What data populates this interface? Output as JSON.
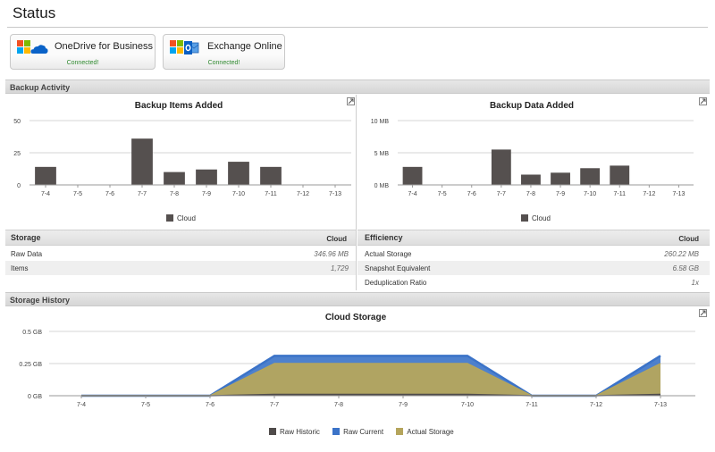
{
  "page": {
    "title": "Status"
  },
  "services": [
    {
      "name": "OneDrive for Business",
      "status": "Connected!",
      "icon": "onedrive-icon"
    },
    {
      "name": "Exchange Online",
      "status": "Connected!",
      "icon": "outlook-icon"
    }
  ],
  "backup_activity": {
    "section_title": "Backup Activity",
    "storage_table": {
      "headers": [
        "Storage",
        "Cloud"
      ],
      "rows": [
        {
          "label": "Raw Data",
          "value": "346.96 MB"
        },
        {
          "label": "Items",
          "value": "1,729"
        }
      ]
    },
    "efficiency_table": {
      "headers": [
        "Efficiency",
        "Cloud"
      ],
      "rows": [
        {
          "label": "Actual Storage",
          "value": "260.22 MB"
        },
        {
          "label": "Snapshot Equivalent",
          "value": "6.58 GB"
        },
        {
          "label": "Deduplication Ratio",
          "value": "1x"
        }
      ]
    }
  },
  "storage_history": {
    "section_title": "Storage History"
  },
  "colors": {
    "cloud_bar": "#55504f",
    "raw_historic": "#4f4b4a",
    "raw_current": "#3b73c8",
    "actual_storage": "#b5a55c",
    "connected_text": "#2f8a2f"
  },
  "chart_data": [
    {
      "type": "bar",
      "title": "Backup Items Added",
      "categories": [
        "7-4",
        "7-5",
        "7-6",
        "7-7",
        "7-8",
        "7-9",
        "7-10",
        "7-11",
        "7-12",
        "7-13"
      ],
      "y_ticks": [
        "0",
        "25",
        "50"
      ],
      "ylim": [
        0,
        50
      ],
      "series": [
        {
          "name": "Cloud",
          "values": [
            14,
            0,
            0,
            36,
            10,
            12,
            18,
            14,
            0,
            0
          ]
        }
      ],
      "legend": "bottom-center",
      "grid": true
    },
    {
      "type": "bar",
      "title": "Backup Data Added",
      "categories": [
        "7-4",
        "7-5",
        "7-6",
        "7-7",
        "7-8",
        "7-9",
        "7-10",
        "7-11",
        "7-12",
        "7-13"
      ],
      "y_ticks": [
        "0 MB",
        "5 MB",
        "10 MB"
      ],
      "ylim": [
        0,
        10
      ],
      "series": [
        {
          "name": "Cloud",
          "values": [
            2.8,
            0,
            0,
            5.5,
            1.6,
            1.9,
            2.6,
            3.0,
            0,
            0
          ]
        }
      ],
      "legend": "bottom-center",
      "grid": true
    },
    {
      "type": "area",
      "title": "Cloud Storage",
      "categories": [
        "7-4",
        "7-5",
        "7-6",
        "7-7",
        "7-8",
        "7-9",
        "7-10",
        "7-11",
        "7-12",
        "7-13"
      ],
      "y_ticks": [
        "0 GB",
        "0.25 GB",
        "0.5 GB"
      ],
      "ylim": [
        0,
        0.5
      ],
      "series": [
        {
          "name": "Raw Historic",
          "values": [
            0,
            0,
            0,
            0.01,
            0.01,
            0.01,
            0.01,
            0,
            0,
            0.01
          ]
        },
        {
          "name": "Raw Current",
          "values": [
            0,
            0,
            0,
            0.31,
            0.31,
            0.31,
            0.31,
            0,
            0,
            0.31
          ]
        },
        {
          "name": "Actual Storage",
          "values": [
            0,
            0,
            0,
            0.25,
            0.25,
            0.25,
            0.25,
            0,
            0,
            0.25
          ]
        }
      ],
      "legend": "bottom-center",
      "grid": true
    }
  ]
}
